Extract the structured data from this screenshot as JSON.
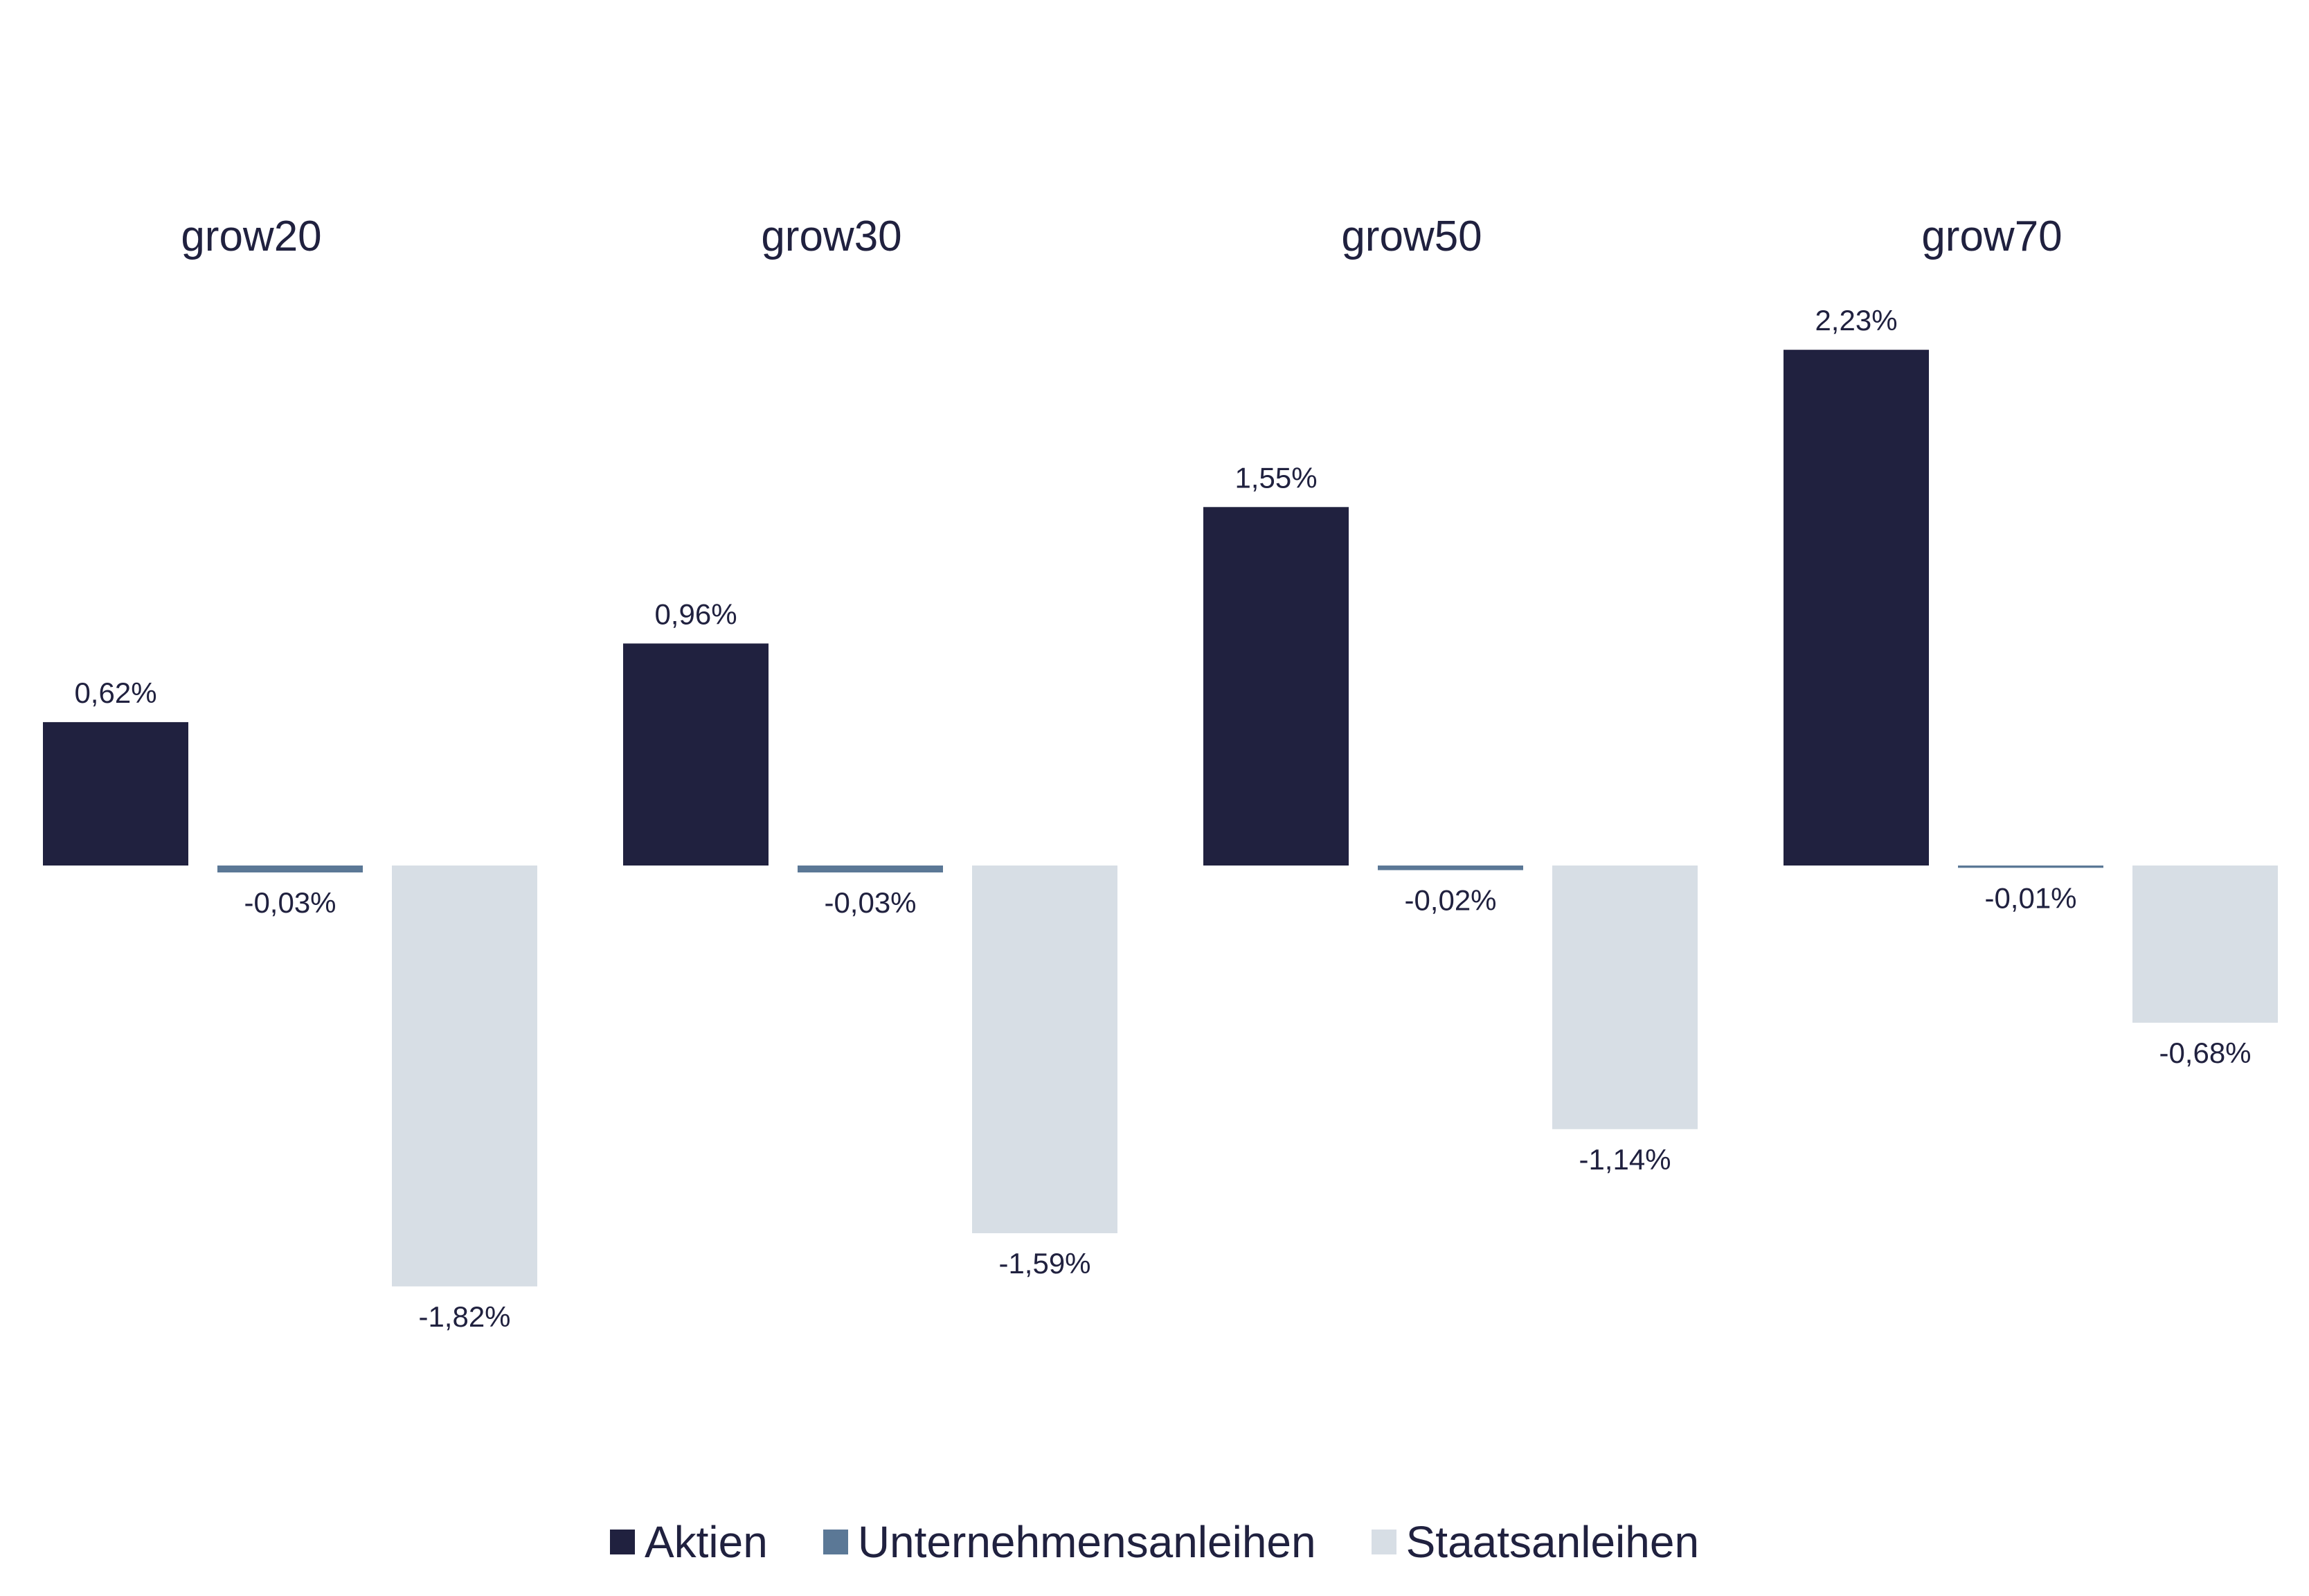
{
  "chart_data": {
    "type": "bar",
    "categories": [
      "grow20",
      "grow30",
      "grow50",
      "grow70"
    ],
    "series": [
      {
        "name": "Aktien",
        "color": "#20213f",
        "values": [
          0.62,
          0.96,
          1.55,
          2.23
        ],
        "labels": [
          "0,62%",
          "0,96%",
          "1,55%",
          "2,23%"
        ]
      },
      {
        "name": "Unternehmensanleihen",
        "color": "#5b7896",
        "values": [
          -0.03,
          -0.03,
          -0.02,
          -0.01
        ],
        "labels": [
          "-0,03%",
          "-0,03%",
          "-0,02%",
          "-0,01%"
        ]
      },
      {
        "name": "Staatsanleihen",
        "color": "#d7dee5",
        "values": [
          -1.82,
          -1.59,
          -1.14,
          -0.68
        ],
        "labels": [
          "-1,82%",
          "-1,59%",
          "-1,14%",
          "-0,68%"
        ]
      }
    ],
    "title": "",
    "xlabel": "",
    "ylabel": "",
    "grid": false,
    "legend_position": "bottom"
  }
}
